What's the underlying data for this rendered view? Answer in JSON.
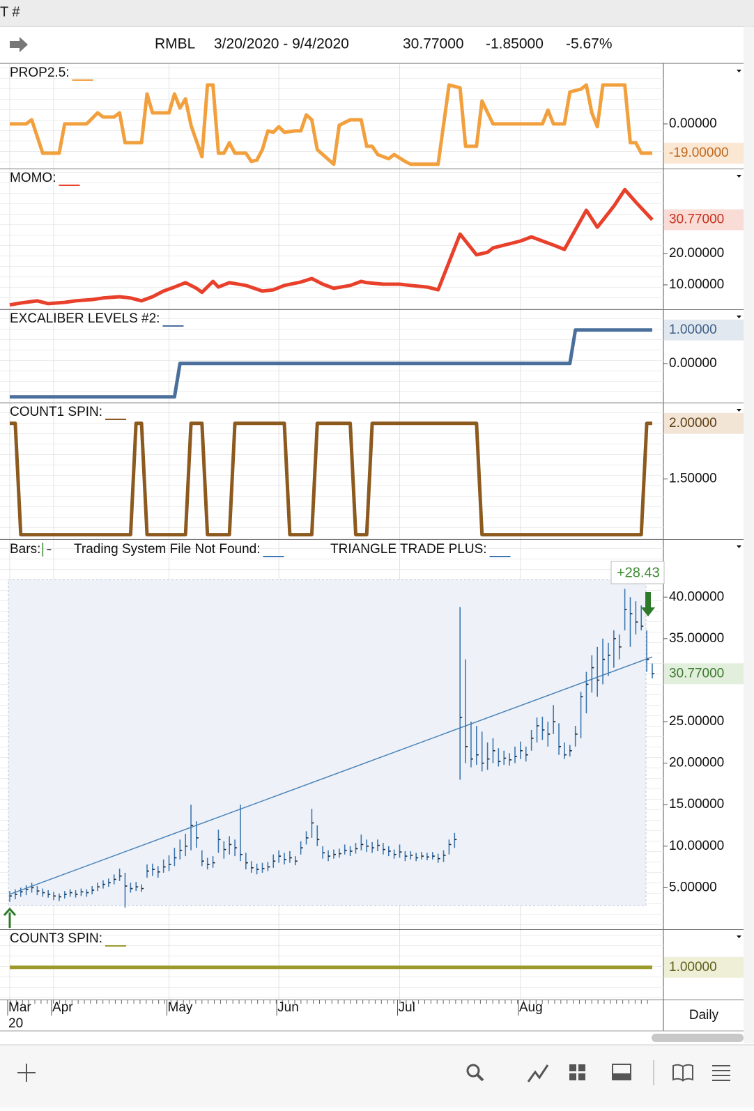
{
  "window_title": "T #",
  "header": {
    "symbol": "RMBL",
    "range": "3/20/2020 - 9/4/2020",
    "last": "30.77000",
    "change": "-1.85000",
    "change_pct": "-5.67%"
  },
  "x_axis": {
    "xlim": [
      0,
      117
    ],
    "xticks": [
      {
        "value": 0,
        "label": "Mar"
      },
      {
        "value": 8,
        "label": "Apr"
      },
      {
        "value": 29,
        "label": "May"
      },
      {
        "value": 49,
        "label": "Jun"
      },
      {
        "value": 71,
        "label": "Jul"
      },
      {
        "value": 93,
        "label": "Aug"
      }
    ],
    "year_label": "20",
    "period": "Daily"
  },
  "chart_data": [
    {
      "type": "line",
      "title": "PROP2.5:",
      "color": "#f2a03d",
      "label_color": "#c0661a",
      "label_bg": "#fbe8d4",
      "ylim": [
        -29,
        38.9
      ],
      "yticks": [
        {
          "value": 0,
          "label": "0.00000"
        }
      ],
      "current": {
        "value": -19,
        "label": "-19.00000"
      },
      "x": [
        0,
        3,
        4,
        6,
        9,
        10,
        14,
        16,
        17,
        19,
        20,
        21,
        24,
        25,
        26,
        29,
        30,
        31,
        32,
        33,
        35,
        36,
        37,
        38,
        39,
        40,
        41,
        43,
        44,
        45,
        46,
        47,
        48,
        49,
        50,
        52,
        53,
        54,
        55,
        56,
        57,
        59,
        60,
        62,
        64,
        65,
        66,
        67,
        69,
        70,
        72,
        73,
        78,
        80,
        82,
        83,
        85,
        86,
        88,
        97,
        98,
        99,
        101,
        102,
        104,
        105,
        106,
        107,
        108,
        112,
        113,
        114,
        115,
        117
      ],
      "values": [
        0,
        0,
        2.7,
        -19,
        -19,
        0,
        0,
        7.2,
        4.5,
        4.5,
        7.2,
        -12.2,
        -12.2,
        19.5,
        7.2,
        7.2,
        19.5,
        10.4,
        16.3,
        -0.9,
        -21.3,
        25.3,
        25.3,
        -19,
        -19,
        -12.2,
        -19,
        -19,
        -24.4,
        -23.5,
        -16.7,
        -4.5,
        -5.4,
        -1.8,
        -5.4,
        -4.5,
        -4.5,
        5.9,
        2.7,
        -16.7,
        -19.9,
        -26.2,
        -0.9,
        2.7,
        2.7,
        -14.5,
        -14.5,
        -19.9,
        -22.6,
        -19.9,
        -24.4,
        -26.2,
        -26.2,
        25.3,
        23.5,
        -14.5,
        -14.5,
        14.9,
        0,
        0,
        9,
        0,
        0,
        20.8,
        22.6,
        25.3,
        7.2,
        -1.8,
        25.3,
        25.3,
        -12.2,
        -12.2,
        -19,
        -19
      ]
    },
    {
      "type": "line",
      "title": "MOMO:",
      "color": "#e8402a",
      "label_color": "#c9301c",
      "label_bg": "#f9dcd6",
      "ylim": [
        2.2,
        46.9
      ],
      "yticks": [
        {
          "value": 10,
          "label": "10.00000"
        },
        {
          "value": 20,
          "label": "20.00000"
        }
      ],
      "current": {
        "value": 30.77,
        "label": "30.77000"
      },
      "x": [
        0,
        2,
        5,
        7,
        10,
        12,
        15,
        17,
        20,
        22,
        24,
        26,
        28,
        30,
        32,
        34,
        35,
        37,
        38,
        40,
        43,
        46,
        48,
        50,
        53,
        55,
        57,
        59,
        62,
        64,
        65,
        68,
        71,
        73,
        76,
        78,
        82,
        85,
        87,
        88,
        91,
        93,
        95,
        97,
        99,
        101,
        105,
        107,
        110,
        112,
        114,
        117
      ],
      "values": [
        3.6,
        4.2,
        4.9,
        4.0,
        4.4,
        4.9,
        5.3,
        5.8,
        6.2,
        5.8,
        4.9,
        6.2,
        8.0,
        9.3,
        10.7,
        8.9,
        7.6,
        11.1,
        9.3,
        10.7,
        9.8,
        8.0,
        8.4,
        9.8,
        10.9,
        12.0,
        10.2,
        8.9,
        9.8,
        11.1,
        10.7,
        10.2,
        10.2,
        9.8,
        9.3,
        8.4,
        26.2,
        19.6,
        20.4,
        21.8,
        23.1,
        24.0,
        25.3,
        24.0,
        22.7,
        21.3,
        33.8,
        28.4,
        35.1,
        40.4,
        36.4,
        30.77
      ]
    },
    {
      "type": "line",
      "title": "EXCALIBER LEVELS #2:",
      "color": "#4a6f9b",
      "label_color": "#3d5f88",
      "label_bg": "#e2e8ef",
      "ylim": [
        -1.17,
        1.6
      ],
      "yticks": [
        {
          "value": 0,
          "label": "0.00000"
        }
      ],
      "current": {
        "value": 1,
        "label": "1.00000"
      },
      "x": [
        0,
        30,
        31,
        102,
        103,
        117
      ],
      "values": [
        -1,
        -1,
        0,
        0,
        1,
        1
      ]
    },
    {
      "type": "line",
      "title": "COUNT1 SPIN:",
      "color": "#8c5a1f",
      "label_color": "#5e3c12",
      "label_bg": "#f2e5d6",
      "ylim": [
        0.96,
        2.18
      ],
      "yticks": [
        {
          "value": 1.5,
          "label": "1.50000"
        }
      ],
      "current": {
        "value": 2,
        "label": "2.00000"
      },
      "x": [
        0,
        1,
        2,
        22,
        23,
        24,
        25,
        32,
        33,
        35,
        36,
        40,
        41,
        50,
        51,
        55,
        56,
        62,
        63,
        65,
        66,
        85,
        86,
        115,
        116,
        117
      ],
      "values": [
        2,
        2,
        1,
        1,
        2,
        2,
        1,
        1,
        2,
        2,
        1,
        1,
        2,
        2,
        1,
        1,
        2,
        2,
        1,
        1,
        2,
        2,
        1,
        1,
        2,
        2
      ]
    },
    {
      "type": "ohlc",
      "legend": [
        "Bars:",
        "Trading System File Not Found:",
        "TRIANGLE TRADE PLUS:"
      ],
      "color": "#3b76b0",
      "label_color": "#3a7a2e",
      "label_bg": "#e3efdd",
      "ylim": [
        0,
        46.9
      ],
      "yticks": [
        {
          "value": 5,
          "label": "5.00000"
        },
        {
          "value": 10,
          "label": "10.00000"
        },
        {
          "value": 15,
          "label": "15.00000"
        },
        {
          "value": 20,
          "label": "20.00000"
        },
        {
          "value": 25,
          "label": "25.00000"
        },
        {
          "value": 35,
          "label": "35.00000"
        },
        {
          "value": 40,
          "label": "40.00000"
        }
      ],
      "current": {
        "value": 30.77,
        "label": "30.77000"
      },
      "gain_label": "+28.43",
      "high": [
        4.6,
        4.8,
        5.0,
        5.3,
        5.6,
        5.2,
        4.9,
        4.7,
        4.5,
        4.3,
        4.6,
        4.8,
        4.7,
        4.9,
        4.8,
        5.2,
        5.6,
        5.9,
        6.1,
        6.6,
        7.3,
        6.8,
        5.6,
        5.7,
        5.4,
        7.8,
        7.9,
        7.6,
        8.4,
        8.9,
        9.8,
        10.8,
        11.5,
        15.0,
        13.0,
        9.5,
        8.6,
        8.8,
        12.0,
        10.6,
        11.2,
        10.8,
        15.0,
        9.2,
        8.2,
        7.9,
        8.0,
        8.1,
        9.0,
        9.5,
        9.2,
        9.4,
        8.8,
        10.6,
        11.8,
        14.5,
        12.5,
        10.0,
        9.5,
        9.6,
        9.7,
        10.2,
        10.0,
        10.4,
        11.4,
        10.8,
        10.5,
        10.8,
        10.4,
        10.0,
        9.6,
        10.2,
        9.4,
        9.4,
        9.2,
        9.3,
        9.2,
        9.3,
        9.1,
        9.5,
        10.8,
        11.6,
        38.8,
        32.5,
        25.0,
        24.5,
        23.8,
        22.5,
        23.0,
        21.8,
        21.5,
        21.2,
        22.0,
        22.6,
        22.0,
        24.0,
        25.5,
        25.6,
        25.0,
        27.0,
        24.8,
        22.5,
        22.2,
        24.5,
        28.6,
        31.0,
        33.0,
        34.0,
        35.0,
        34.5,
        36.0,
        35.5,
        41.0,
        40.0,
        39.5,
        39.0,
        36.0,
        32.0
      ],
      "low": [
        3.3,
        3.6,
        3.9,
        4.1,
        4.4,
        4.1,
        3.9,
        3.8,
        3.5,
        3.4,
        3.7,
        3.9,
        3.8,
        4.0,
        3.9,
        4.2,
        4.6,
        4.9,
        5.1,
        5.4,
        5.8,
        2.6,
        4.4,
        4.6,
        4.5,
        6.2,
        6.4,
        6.2,
        6.8,
        7.0,
        7.6,
        8.4,
        8.8,
        9.5,
        9.8,
        7.6,
        7.2,
        7.4,
        9.2,
        8.5,
        9.0,
        8.8,
        8.2,
        7.2,
        6.8,
        6.6,
        6.8,
        7.0,
        7.4,
        8.0,
        7.8,
        8.0,
        7.7,
        9.0,
        10.2,
        11.0,
        10.0,
        8.5,
        8.2,
        8.5,
        8.6,
        9.0,
        8.8,
        9.1,
        9.5,
        9.3,
        9.2,
        9.4,
        9.0,
        8.8,
        8.5,
        8.6,
        8.2,
        8.4,
        8.2,
        8.4,
        8.3,
        8.4,
        8.0,
        8.1,
        9.0,
        9.8,
        18.0,
        20.0,
        19.5,
        19.8,
        19.0,
        19.2,
        20.0,
        19.6,
        19.8,
        19.7,
        20.0,
        20.5,
        20.2,
        21.5,
        22.5,
        22.8,
        22.0,
        23.5,
        21.0,
        20.5,
        20.8,
        22.0,
        23.0,
        26.0,
        28.5,
        28.0,
        29.5,
        30.5,
        31.5,
        32.5,
        36.0,
        34.0,
        35.5,
        36.0,
        31.0,
        30.2
      ],
      "close": [
        4.0,
        4.2,
        4.5,
        4.8,
        5.0,
        4.6,
        4.4,
        4.2,
        4.0,
        3.9,
        4.2,
        4.4,
        4.2,
        4.5,
        4.4,
        4.7,
        5.1,
        5.4,
        5.6,
        6.0,
        6.4,
        5.2,
        4.9,
        5.1,
        4.9,
        7.0,
        7.2,
        6.9,
        7.5,
        7.8,
        8.6,
        9.5,
        10.0,
        12.5,
        11.0,
        8.2,
        7.8,
        8.0,
        10.8,
        9.6,
        10.2,
        9.8,
        9.0,
        8.0,
        7.4,
        7.2,
        7.3,
        7.5,
        8.2,
        8.8,
        8.4,
        8.6,
        8.2,
        9.8,
        11.0,
        12.8,
        10.8,
        9.2,
        8.8,
        9.0,
        9.1,
        9.5,
        9.4,
        9.7,
        10.2,
        10.0,
        9.8,
        10.1,
        9.6,
        9.4,
        9.0,
        9.3,
        8.8,
        8.9,
        8.6,
        8.8,
        8.7,
        8.8,
        8.5,
        8.9,
        10.2,
        10.8,
        25.5,
        22.0,
        20.5,
        21.0,
        20.0,
        20.5,
        21.5,
        20.2,
        20.6,
        20.4,
        20.8,
        21.5,
        21.0,
        23.0,
        24.5,
        24.0,
        23.5,
        25.0,
        22.0,
        21.0,
        21.5,
        23.5,
        28.0,
        29.5,
        31.5,
        30.0,
        32.5,
        33.0,
        35.0,
        34.0,
        38.5,
        38.0,
        37.0,
        36.5,
        32.5,
        30.77
      ],
      "trendline": {
        "color": "#4a82b8",
        "x": [
          0,
          117
        ],
        "values": [
          4.2,
          32.8
        ]
      }
    },
    {
      "type": "line",
      "title": "COUNT3 SPIN:",
      "color": "#9c9a2c",
      "label_color": "#5f5e18",
      "label_bg": "#efefd8",
      "ylim": [
        0.4,
        1.7
      ],
      "current": {
        "value": 1,
        "label": "1.00000"
      },
      "x": [
        0,
        117
      ],
      "values": [
        1,
        1
      ]
    }
  ]
}
